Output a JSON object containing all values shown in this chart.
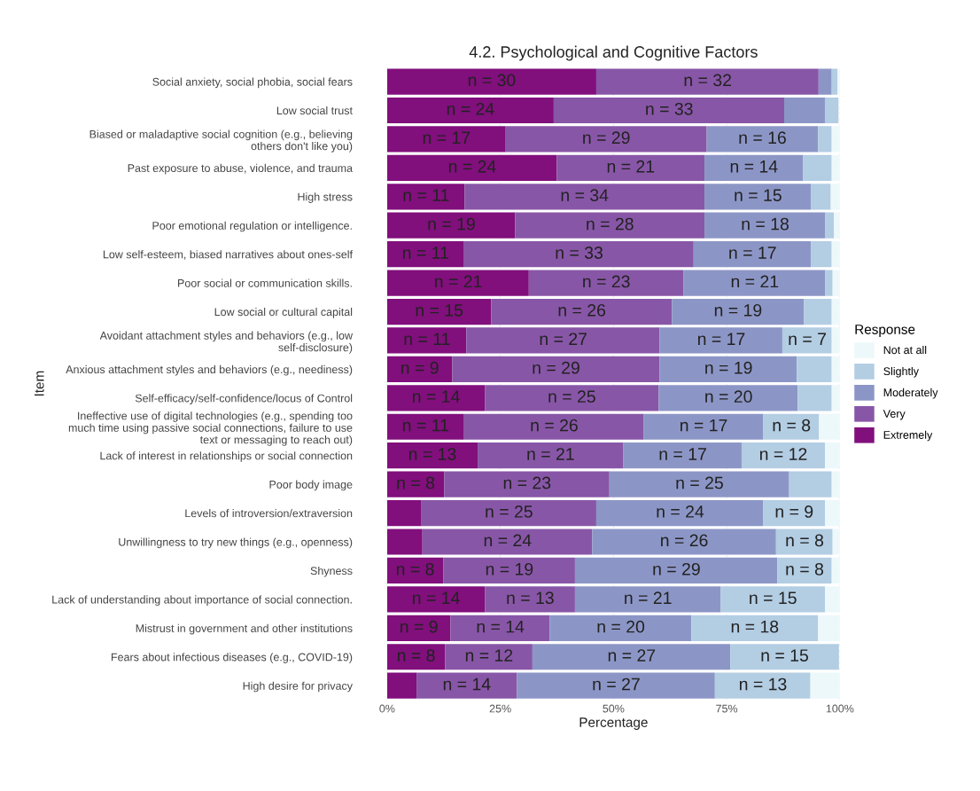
{
  "chart_data": {
    "type": "bar",
    "orientation": "horizontal",
    "stacked": true,
    "title": "4.2. Psychological and Cognitive Factors",
    "xlabel": "Percentage",
    "ylabel": "Item",
    "legend_title": "Response",
    "categories": [
      "Social anxiety, social phobia, social fears",
      "Low social trust",
      "Biased or maladaptive social cognition (e.g., believing\nothers don't like you)",
      "Past exposure to abuse, violence, and trauma",
      "High stress",
      "Poor emotional regulation or intelligence.",
      "Low self-esteem, biased narratives about ones-self",
      "Poor social or communication skills.",
      "Low social or cultural capital",
      "Avoidant attachment styles and behaviors (e.g., low\nself-disclosure)",
      "Anxious attachment styles and behaviors (e.g., neediness)",
      "Self-efficacy/self-confidence/locus of Control",
      "Ineffective use of digital technologies (e.g., spending too\nmuch time using passive social connections, failure to use\ntext or messaging to reach out)",
      "Lack of interest in relationships or social connection",
      "Poor body image",
      "Levels of introversion/extraversion",
      "Unwillingness to try new things (e.g., openness)",
      "Shyness",
      "Lack of understanding about importance of social connection.",
      "Mistrust in government and other institutions",
      "Fears about infectious diseases (e.g., COVID-19)",
      "High desire for privacy"
    ],
    "series": [
      {
        "name": "Extremely",
        "color": "#810f7c",
        "values": [
          46.2,
          36.8,
          26.2,
          37.5,
          17.1,
          28.3,
          17.0,
          31.3,
          23.0,
          17.5,
          14.4,
          21.6,
          17.0,
          20.0,
          12.6,
          7.6,
          7.8,
          12.4,
          21.6,
          14.0,
          12.8,
          6.5
        ]
      },
      {
        "name": "Very",
        "color": "#8856a7",
        "values": [
          49.1,
          50.9,
          44.4,
          32.6,
          53.0,
          41.8,
          50.7,
          34.2,
          39.9,
          42.7,
          45.8,
          38.4,
          39.7,
          32.2,
          36.5,
          38.6,
          37.5,
          29.1,
          19.9,
          21.9,
          19.3,
          22.2
        ]
      },
      {
        "name": "Moderately",
        "color": "#8c96c6",
        "values": [
          2.9,
          9.0,
          24.6,
          21.8,
          23.5,
          26.7,
          25.9,
          31.3,
          29.2,
          27.1,
          30.3,
          30.7,
          26.4,
          26.1,
          39.7,
          36.9,
          40.6,
          44.7,
          32.2,
          31.3,
          43.7,
          43.7
        ]
      },
      {
        "name": "Slightly",
        "color": "#b3cde3",
        "values": [
          1.3,
          3.0,
          3.0,
          6.3,
          4.4,
          1.9,
          4.6,
          1.6,
          6.1,
          10.9,
          7.7,
          7.5,
          12.3,
          18.4,
          9.4,
          13.6,
          12.5,
          12.0,
          23.0,
          28.0,
          24.0,
          21.1
        ]
      },
      {
        "name": "Not at all",
        "color": "#edf8fb",
        "values": [
          0.5,
          null,
          1.8,
          1.8,
          2.0,
          1.3,
          1.8,
          1.6,
          1.8,
          1.8,
          1.8,
          1.8,
          4.6,
          3.3,
          1.8,
          3.3,
          1.6,
          1.8,
          3.3,
          4.8,
          null,
          6.5
        ]
      }
    ],
    "annotations": [
      {
        "text": "n = 30",
        "x": 23.1,
        "y": "Social anxiety, social phobia, social fears"
      },
      {
        "text": "n = 32",
        "x": 70.8,
        "y": "Social anxiety, social phobia, social fears"
      },
      {
        "text": "n = 24",
        "x": 18.4,
        "y": "Low social trust"
      },
      {
        "text": "n = 33",
        "x": 62.3,
        "y": "Low social trust"
      },
      {
        "text": "n = 17",
        "x": 13.1,
        "y": "Biased or maladaptive social cognition (e.g., believing\nothers don't like you)"
      },
      {
        "text": "n = 29",
        "x": 48.4,
        "y": "Biased or maladaptive social cognition (e.g., believing\nothers don't like you)"
      },
      {
        "text": "n = 16",
        "x": 82.9,
        "y": "Biased or maladaptive social cognition (e.g., believing\nothers don't like you)"
      },
      {
        "text": "n = 24",
        "x": 18.8,
        "y": "Past exposure to abuse, violence, and trauma"
      },
      {
        "text": "n = 21",
        "x": 53.8,
        "y": "Past exposure to abuse, violence, and trauma"
      },
      {
        "text": "n = 14",
        "x": 81.0,
        "y": "Past exposure to abuse, violence, and trauma"
      },
      {
        "text": "n = 11",
        "x": 8.6,
        "y": "High stress"
      },
      {
        "text": "n = 34",
        "x": 43.6,
        "y": "High stress"
      },
      {
        "text": "n = 15",
        "x": 81.9,
        "y": "High stress"
      },
      {
        "text": "n = 19",
        "x": 14.2,
        "y": "Poor emotional regulation or intelligence."
      },
      {
        "text": "n = 28",
        "x": 49.2,
        "y": "Poor emotional regulation or intelligence."
      },
      {
        "text": "n = 18",
        "x": 83.5,
        "y": "Poor emotional regulation or intelligence."
      },
      {
        "text": "n = 11",
        "x": 8.5,
        "y": "Low self-esteem, biased narratives about ones-self"
      },
      {
        "text": "n = 33",
        "x": 42.4,
        "y": "Low self-esteem, biased narratives about ones-self"
      },
      {
        "text": "n = 17",
        "x": 80.7,
        "y": "Low self-esteem, biased narratives about ones-self"
      },
      {
        "text": "n = 21",
        "x": 15.7,
        "y": "Poor social or communication skills."
      },
      {
        "text": "n = 23",
        "x": 48.4,
        "y": "Poor social or communication skills."
      },
      {
        "text": "n = 21",
        "x": 81.2,
        "y": "Poor social or communication skills."
      },
      {
        "text": "n = 15",
        "x": 11.5,
        "y": "Low social or cultural capital"
      },
      {
        "text": "n = 26",
        "x": 43.0,
        "y": "Low social or cultural capital"
      },
      {
        "text": "n = 19",
        "x": 77.5,
        "y": "Low social or cultural capital"
      },
      {
        "text": "n = 11",
        "x": 8.8,
        "y": "Avoidant attachment styles and behaviors (e.g., low\nself-disclosure)"
      },
      {
        "text": "n = 27",
        "x": 38.9,
        "y": "Avoidant attachment styles and behaviors (e.g., low\nself-disclosure)"
      },
      {
        "text": "n = 17",
        "x": 73.8,
        "y": "Avoidant attachment styles and behaviors (e.g., low\nself-disclosure)"
      },
      {
        "text": "n = 7",
        "x": 92.8,
        "y": "Avoidant attachment styles and behaviors (e.g., low\nself-disclosure)"
      },
      {
        "text": "n = 9",
        "x": 7.2,
        "y": "Anxious attachment styles and behaviors (e.g., neediness)"
      },
      {
        "text": "n = 29",
        "x": 37.3,
        "y": "Anxious attachment styles and behaviors (e.g., neediness)"
      },
      {
        "text": "n = 19",
        "x": 75.4,
        "y": "Anxious attachment styles and behaviors (e.g., neediness)"
      },
      {
        "text": "n = 14",
        "x": 10.8,
        "y": "Self-efficacy/self-confidence/locus of Control"
      },
      {
        "text": "n = 25",
        "x": 40.8,
        "y": "Self-efficacy/self-confidence/locus of Control"
      },
      {
        "text": "n = 20",
        "x": 75.4,
        "y": "Self-efficacy/self-confidence/locus of Control"
      },
      {
        "text": "n = 11",
        "x": 8.5,
        "y": "Ineffective use of digital technologies (e.g., spending too\nmuch time using passive social connections, failure to use\ntext or messaging to reach out)"
      },
      {
        "text": "n = 26",
        "x": 36.9,
        "y": "Ineffective use of digital technologies (e.g., spending too\nmuch time using passive social connections, failure to use\ntext or messaging to reach out)"
      },
      {
        "text": "n = 17",
        "x": 69.9,
        "y": "Ineffective use of digital technologies (e.g., spending too\nmuch time using passive social connections, failure to use\ntext or messaging to reach out)"
      },
      {
        "text": "n = 8",
        "x": 89.3,
        "y": "Ineffective use of digital technologies (e.g., spending too\nmuch time using passive social connections, failure to use\ntext or messaging to reach out)"
      },
      {
        "text": "n = 13",
        "x": 10.0,
        "y": "Lack of interest in relationships or social connection"
      },
      {
        "text": "n = 21",
        "x": 36.1,
        "y": "Lack of interest in relationships or social connection"
      },
      {
        "text": "n = 17",
        "x": 65.3,
        "y": "Lack of interest in relationships or social connection"
      },
      {
        "text": "n = 12",
        "x": 87.5,
        "y": "Lack of interest in relationships or social connection"
      },
      {
        "text": "n = 8",
        "x": 6.3,
        "y": "Poor body image"
      },
      {
        "text": "n = 23",
        "x": 30.9,
        "y": "Poor body image"
      },
      {
        "text": "n = 25",
        "x": 69.0,
        "y": "Poor body image"
      },
      {
        "text": "n = 25",
        "x": 26.9,
        "y": "Levels of introversion/extraversion"
      },
      {
        "text": "n = 24",
        "x": 64.7,
        "y": "Levels of introversion/extraversion"
      },
      {
        "text": "n = 9",
        "x": 89.9,
        "y": "Levels of introversion/extraversion"
      },
      {
        "text": "n = 24",
        "x": 26.6,
        "y": "Unwillingness to try new things (e.g., openness)"
      },
      {
        "text": "n = 26",
        "x": 65.6,
        "y": "Unwillingness to try new things (e.g., openness)"
      },
      {
        "text": "n = 8",
        "x": 92.2,
        "y": "Unwillingness to try new things (e.g., openness)"
      },
      {
        "text": "n = 8",
        "x": 6.2,
        "y": "Shyness"
      },
      {
        "text": "n = 19",
        "x": 27.0,
        "y": "Shyness"
      },
      {
        "text": "n = 29",
        "x": 63.9,
        "y": "Shyness"
      },
      {
        "text": "n = 8",
        "x": 92.2,
        "y": "Shyness"
      },
      {
        "text": "n = 14",
        "x": 10.8,
        "y": "Lack of understanding about importance of social connection."
      },
      {
        "text": "n = 13",
        "x": 31.6,
        "y": "Lack of understanding about importance of social connection."
      },
      {
        "text": "n = 21",
        "x": 57.6,
        "y": "Lack of understanding about importance of social connection."
      },
      {
        "text": "n = 15",
        "x": 85.2,
        "y": "Lack of understanding about importance of social connection."
      },
      {
        "text": "n = 9",
        "x": 7.0,
        "y": "Mistrust in government and other institutions"
      },
      {
        "text": "n = 14",
        "x": 25.0,
        "y": "Mistrust in government and other institutions"
      },
      {
        "text": "n = 20",
        "x": 51.6,
        "y": "Mistrust in government and other institutions"
      },
      {
        "text": "n = 18",
        "x": 81.2,
        "y": "Mistrust in government and other institutions"
      },
      {
        "text": "n = 8",
        "x": 6.4,
        "y": "Fears about infectious diseases (e.g., COVID-19)"
      },
      {
        "text": "n = 12",
        "x": 22.5,
        "y": "Fears about infectious diseases (e.g., COVID-19)"
      },
      {
        "text": "n = 27",
        "x": 54.0,
        "y": "Fears about infectious diseases (e.g., COVID-19)"
      },
      {
        "text": "n = 15",
        "x": 87.8,
        "y": "Fears about infectious diseases (e.g., COVID-19)"
      },
      {
        "text": "n = 14",
        "x": 17.6,
        "y": "High desire for privacy"
      },
      {
        "text": "n = 27",
        "x": 50.6,
        "y": "High desire for privacy"
      },
      {
        "text": "n = 13",
        "x": 83.0,
        "y": "High desire for privacy"
      }
    ],
    "xlim": [
      0,
      100
    ],
    "xticks": [
      {
        "value": 0,
        "label": "0%"
      },
      {
        "value": 25,
        "label": "25%"
      },
      {
        "value": 50,
        "label": "50%"
      },
      {
        "value": 75,
        "label": "75%"
      },
      {
        "value": 100,
        "label": "100%"
      }
    ],
    "grid": true,
    "legend": "right"
  }
}
